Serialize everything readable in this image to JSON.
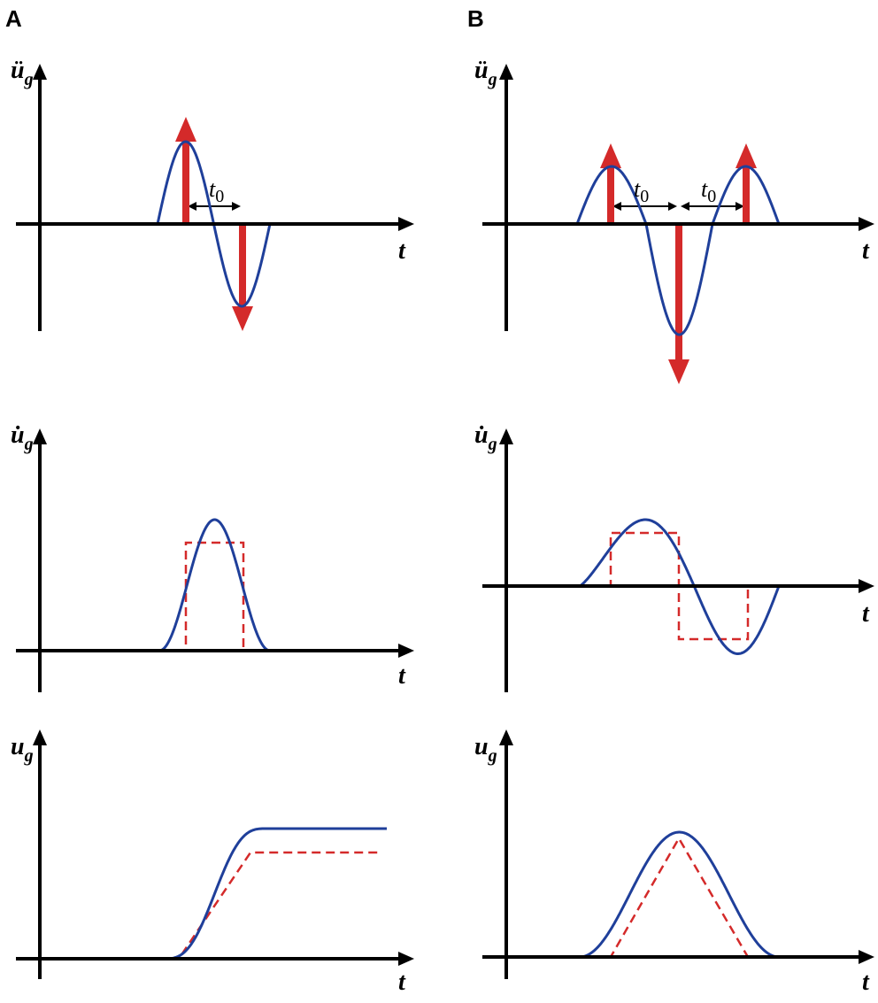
{
  "panels": [
    {
      "label": "A",
      "plots": [
        {
          "y_label": {
            "base": "ü",
            "sub": "g"
          },
          "x_label": "t",
          "annotations": [
            {
              "base": "t",
              "sub": "0"
            }
          ]
        },
        {
          "y_label": {
            "base": "u̇",
            "sub": "g"
          },
          "x_label": "t"
        },
        {
          "y_label": {
            "base": "u",
            "sub": "g"
          },
          "x_label": "t"
        }
      ]
    },
    {
      "label": "B",
      "plots": [
        {
          "y_label": {
            "base": "ü",
            "sub": "g"
          },
          "x_label": "t",
          "annotations": [
            {
              "base": "t",
              "sub": "0"
            },
            {
              "base": "t",
              "sub": "0"
            }
          ]
        },
        {
          "y_label": {
            "base": "u̇",
            "sub": "g"
          },
          "x_label": "t"
        },
        {
          "y_label": {
            "base": "u",
            "sub": "g"
          },
          "x_label": "t"
        }
      ]
    }
  ]
}
